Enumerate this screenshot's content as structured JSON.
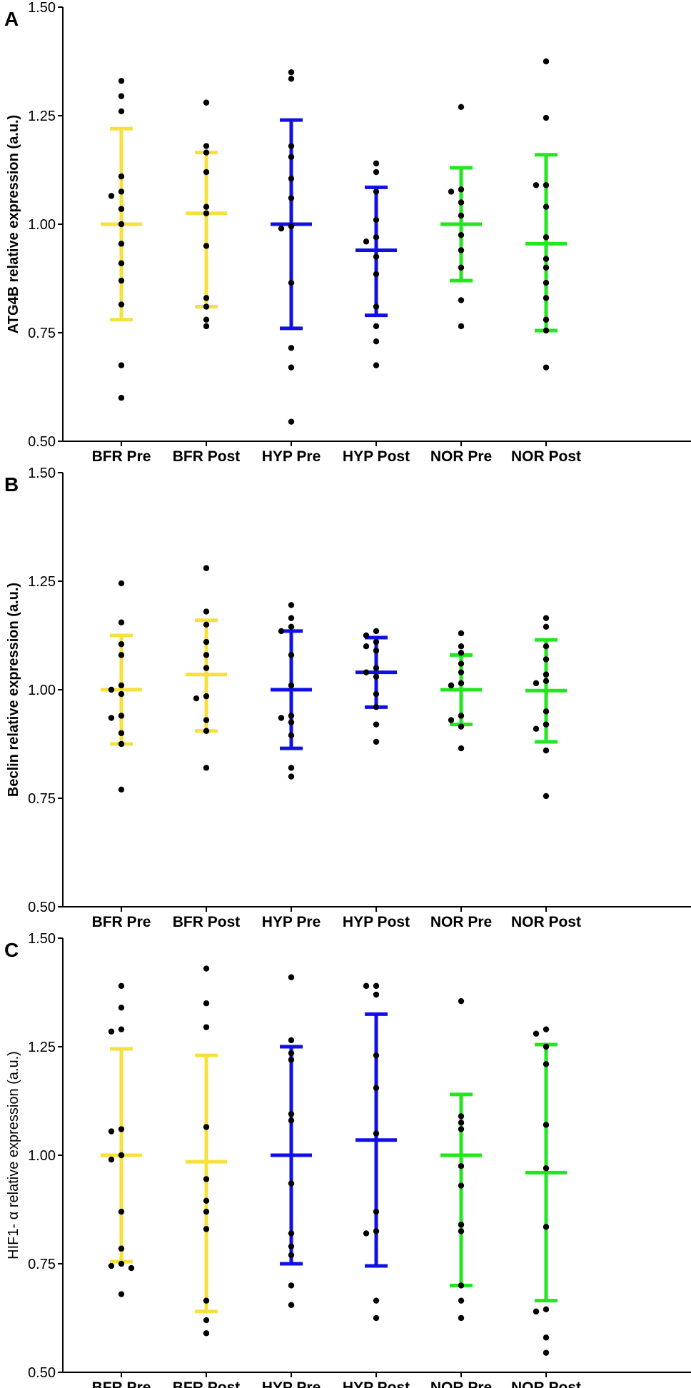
{
  "colors": {
    "BFR": "#F5E03C",
    "HYP": "#1010E6",
    "NOR": "#22E61E",
    "points": "#000000"
  },
  "chart_data": [
    {
      "type": "scatter",
      "panel": "A",
      "ylabel": "ATG4B relative expression (a.u.)",
      "ylim": [
        0.5,
        1.5
      ],
      "yticks": [
        "0.50",
        "0.75",
        "1.00",
        "1.25",
        "1.50"
      ],
      "categories": [
        "BFR Pre",
        "BFR Post",
        "HYP Pre",
        "HYP Post",
        "NOR Pre",
        "NOR Post"
      ],
      "groups": [
        "BFR",
        "BFR",
        "HYP",
        "HYP",
        "NOR",
        "NOR"
      ],
      "mean": [
        1.0,
        1.025,
        1.0,
        0.94,
        1.0,
        0.955
      ],
      "err_low": [
        0.78,
        0.81,
        0.76,
        0.79,
        0.87,
        0.755
      ],
      "err_high": [
        1.22,
        1.165,
        1.24,
        1.085,
        1.13,
        1.16
      ],
      "points": [
        [
          1.33,
          1.295,
          1.26,
          1.11,
          1.075,
          1.065,
          1.035,
          1.0,
          0.955,
          0.91,
          0.87,
          0.815,
          0.675,
          0.6
        ],
        [
          1.28,
          1.18,
          1.165,
          1.12,
          1.04,
          1.025,
          0.95,
          0.83,
          0.81,
          0.78,
          0.765
        ],
        [
          1.35,
          1.335,
          1.18,
          1.155,
          1.105,
          1.06,
          0.995,
          0.99,
          0.865,
          0.715,
          0.67,
          0.545
        ],
        [
          1.14,
          1.12,
          1.075,
          1.01,
          0.97,
          0.96,
          0.925,
          0.885,
          0.81,
          0.765,
          0.73,
          0.675
        ],
        [
          1.27,
          1.08,
          1.075,
          1.05,
          1.02,
          0.975,
          0.94,
          0.9,
          0.825,
          0.765
        ],
        [
          1.375,
          1.245,
          1.09,
          1.09,
          1.04,
          0.97,
          0.92,
          0.9,
          0.865,
          0.83,
          0.78,
          0.755,
          0.67
        ]
      ]
    },
    {
      "type": "scatter",
      "panel": "B",
      "ylabel": "Beclin relative expression  (a.u.)",
      "ylim": [
        0.5,
        1.5
      ],
      "yticks": [
        "0.50",
        "0.75",
        "1.00",
        "1.25",
        "1.50"
      ],
      "categories": [
        "BFR Pre",
        "BFR Post",
        "HYP Pre",
        "HYP Post",
        "NOR Pre",
        "NOR Post"
      ],
      "groups": [
        "BFR",
        "BFR",
        "HYP",
        "HYP",
        "NOR",
        "NOR"
      ],
      "mean": [
        1.0,
        1.035,
        1.0,
        1.04,
        1.0,
        0.998
      ],
      "err_low": [
        0.875,
        0.905,
        0.865,
        0.96,
        0.92,
        0.88
      ],
      "err_high": [
        1.125,
        1.16,
        1.135,
        1.12,
        1.08,
        1.115
      ],
      "points": [
        [
          1.245,
          1.155,
          1.105,
          1.08,
          1.01,
          1.0,
          0.99,
          0.94,
          0.935,
          0.9,
          0.875,
          0.77
        ],
        [
          1.28,
          1.18,
          1.15,
          1.11,
          1.08,
          1.05,
          0.985,
          0.98,
          0.93,
          0.905,
          0.82
        ],
        [
          1.195,
          1.165,
          1.145,
          1.135,
          1.08,
          1.01,
          0.94,
          0.935,
          0.925,
          0.895,
          0.82,
          0.8
        ],
        [
          1.135,
          1.125,
          1.11,
          1.1,
          1.09,
          1.05,
          1.04,
          1.03,
          0.99,
          0.96,
          0.92,
          0.88
        ],
        [
          1.13,
          1.1,
          1.085,
          1.06,
          1.04,
          1.015,
          1.01,
          0.94,
          0.93,
          0.915,
          0.865
        ],
        [
          1.165,
          1.145,
          1.1,
          1.07,
          1.035,
          1.02,
          1.015,
          0.95,
          0.92,
          0.91,
          0.86,
          0.755
        ]
      ]
    },
    {
      "type": "scatter",
      "panel": "C",
      "ylabel": "HIF1- α  relative expression (a.u.)",
      "ylim": [
        0.5,
        1.5
      ],
      "yticks": [
        "0.50",
        "0.75",
        "1.00",
        "1.25",
        "1.50"
      ],
      "categories": [
        "BFR Pre",
        "BFR Post",
        "HYP Pre",
        "HYP Post",
        "NOR Pre",
        "NOR Post"
      ],
      "groups": [
        "BFR",
        "BFR",
        "HYP",
        "HYP",
        "NOR",
        "NOR"
      ],
      "mean": [
        1.0,
        0.985,
        1.0,
        1.035,
        1.0,
        0.96
      ],
      "err_low": [
        0.755,
        0.64,
        0.75,
        0.745,
        0.7,
        0.665
      ],
      "err_high": [
        1.245,
        1.23,
        1.25,
        1.325,
        1.14,
        1.255
      ],
      "points": [
        [
          1.39,
          1.34,
          1.29,
          1.285,
          1.06,
          1.055,
          1.0,
          0.99,
          0.87,
          0.785,
          0.75,
          0.745,
          0.74,
          0.68
        ],
        [
          1.43,
          1.35,
          1.295,
          1.065,
          0.945,
          0.895,
          0.87,
          0.83,
          0.665,
          0.62,
          0.59
        ],
        [
          1.41,
          1.265,
          1.235,
          1.22,
          1.095,
          1.08,
          0.935,
          0.82,
          0.79,
          0.77,
          0.7,
          0.655
        ],
        [
          1.39,
          1.39,
          1.37,
          1.23,
          1.155,
          1.05,
          0.87,
          0.825,
          0.82,
          0.665,
          0.625
        ],
        [
          1.355,
          1.09,
          1.075,
          1.06,
          0.975,
          0.93,
          0.84,
          0.825,
          0.7,
          0.665,
          0.625
        ],
        [
          1.29,
          1.28,
          1.25,
          1.21,
          1.07,
          0.97,
          0.835,
          0.645,
          0.64,
          0.58,
          0.545
        ]
      ]
    }
  ]
}
